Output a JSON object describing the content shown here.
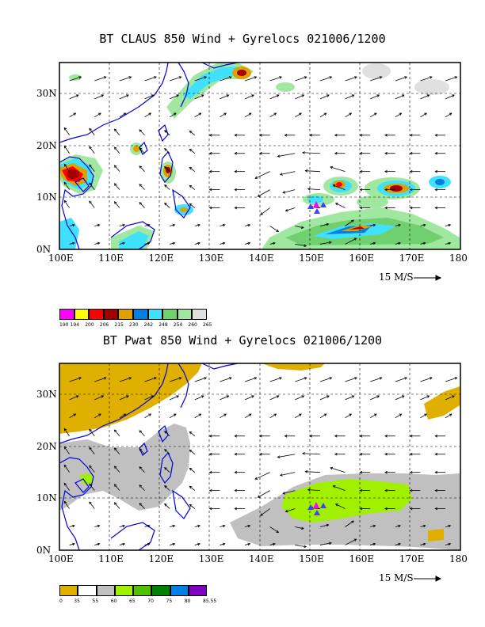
{
  "panels": [
    {
      "title": "BT CLAUS 850 Wind + Gyrelocs 021006/1200",
      "x_ticks": [
        "100E",
        "110E",
        "120E",
        "130E",
        "140E",
        "150E",
        "160E",
        "170E",
        "180"
      ],
      "y_ticks": [
        "0N",
        "10N",
        "20N",
        "30N"
      ],
      "scale_label": "15 M/S",
      "legend": {
        "labels": [
          "190",
          "194",
          "200",
          "206",
          "215",
          "230",
          "242",
          "248",
          "254",
          "260",
          "265"
        ],
        "colors": [
          "#ff00ff",
          "#ffff00",
          "#ff0000",
          "#a00000",
          "#e0a000",
          "#0080e0",
          "#40e0ff",
          "#70d070",
          "#a0e8a0",
          "#e0e0e0"
        ]
      }
    },
    {
      "title": "BT Pwat 850 Wind + Gyrelocs 021006/1200",
      "x_ticks": [
        "100E",
        "110E",
        "120E",
        "130E",
        "140E",
        "150E",
        "160E",
        "170E",
        "180"
      ],
      "y_ticks": [
        "0N",
        "10N",
        "20N",
        "30N"
      ],
      "scale_label": "15 M/S",
      "legend": {
        "labels": [
          "0",
          "35",
          "55",
          "60",
          "65",
          "70",
          "75",
          "80",
          "85.55"
        ],
        "colors": [
          "#e0b000",
          "#ffffff",
          "#c0c0c0",
          "#a0f000",
          "#50c000",
          "#008000",
          "#0080e0",
          "#8000c0"
        ]
      }
    }
  ],
  "chart_data": [
    {
      "type": "heatmap",
      "title": "BT CLAUS 850 Wind + Gyrelocs 021006/1200",
      "x_range_deg_lon": [
        100,
        180
      ],
      "y_range_deg_lat": [
        0,
        36
      ],
      "x_ticks": [
        "100E",
        "110E",
        "120E",
        "130E",
        "140E",
        "150E",
        "160E",
        "170E",
        "180"
      ],
      "y_ticks": [
        "0N",
        "10N",
        "20N",
        "30N"
      ],
      "grid": true,
      "colorbar": [
        "190",
        "194",
        "200",
        "206",
        "215",
        "230",
        "242",
        "248",
        "254",
        "260",
        "265"
      ],
      "vector_scale": "15 M/S",
      "markers": [
        {
          "lon": 151.2,
          "lat": 9.0,
          "color": "#ff00ff"
        },
        {
          "lon": 152.0,
          "lat": 9.0,
          "color": "#4040ff"
        },
        {
          "lon": 150.3,
          "lat": 8.6,
          "color": "#4040ff"
        },
        {
          "lon": 151.2,
          "lat": 7.7,
          "color": "#4040ff"
        }
      ]
    },
    {
      "type": "heatmap",
      "title": "BT Pwat 850 Wind + Gyrelocs 021006/1200",
      "x_range_deg_lon": [
        100,
        180
      ],
      "y_range_deg_lat": [
        0,
        36
      ],
      "x_ticks": [
        "100E",
        "110E",
        "120E",
        "130E",
        "140E",
        "150E",
        "160E",
        "170E",
        "180"
      ],
      "y_ticks": [
        "0N",
        "10N",
        "20N",
        "30N"
      ],
      "grid": true,
      "colorbar": [
        "0",
        "35",
        "55",
        "60",
        "65",
        "70",
        "75",
        "80",
        "85.55"
      ],
      "vector_scale": "15 M/S",
      "markers": [
        {
          "lon": 151.2,
          "lat": 9.0,
          "color": "#ff00ff"
        },
        {
          "lon": 152.0,
          "lat": 9.0,
          "color": "#4040ff"
        },
        {
          "lon": 150.3,
          "lat": 8.6,
          "color": "#4040ff"
        },
        {
          "lon": 151.2,
          "lat": 7.7,
          "color": "#4040ff"
        }
      ]
    }
  ]
}
